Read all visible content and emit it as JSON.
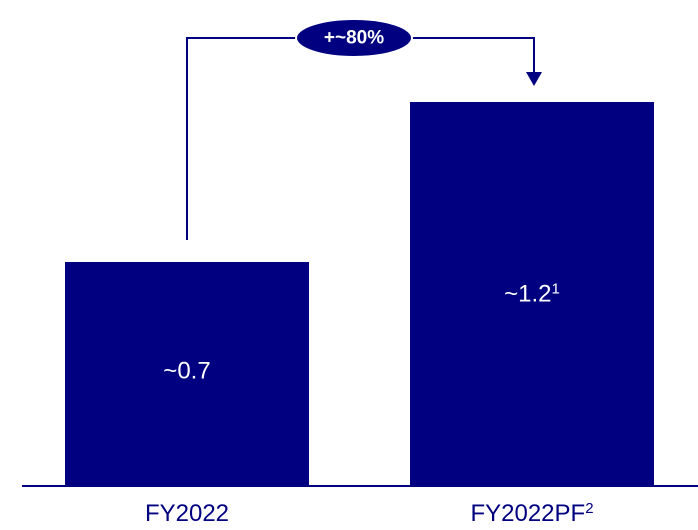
{
  "colors": {
    "bar": "#000080",
    "axis": "#000080",
    "connector": "#000080",
    "badge_fill": "#000080",
    "badge_text": "#ffffff"
  },
  "chart_data": {
    "type": "bar",
    "categories": [
      "FY2022",
      "FY2022PF"
    ],
    "category_superscripts": [
      "",
      "2"
    ],
    "values": [
      0.7,
      1.2
    ],
    "data_labels": [
      "~0.7",
      "~1.2"
    ],
    "data_label_superscripts": [
      "",
      "1"
    ],
    "title": "",
    "xlabel": "",
    "ylabel": "",
    "ylim": [
      0,
      1.6
    ],
    "grid": false,
    "legend": "none",
    "annotation": {
      "type": "growth-arrow",
      "from": "FY2022",
      "to": "FY2022PF",
      "label": "+~80%"
    }
  }
}
